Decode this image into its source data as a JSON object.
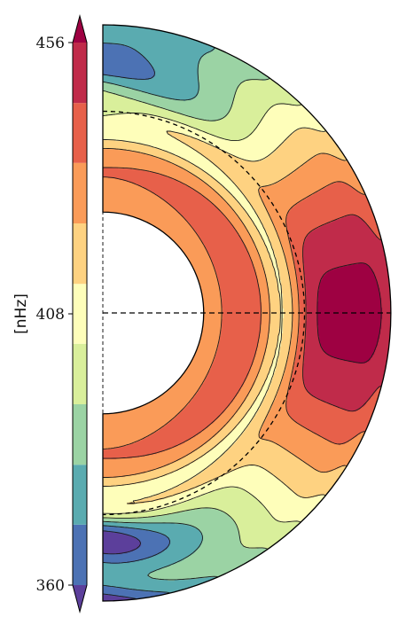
{
  "chart_data": {
    "type": "heatmap",
    "subtype": "meridional-half-disk-contour",
    "colorbar": {
      "label": "[nHz]",
      "vmin": 360,
      "vmax": 456,
      "ticks": [
        {
          "value": 456,
          "label": "456"
        },
        {
          "value": 408,
          "label": "408"
        },
        {
          "value": 360,
          "label": "360"
        }
      ],
      "extend": "both",
      "levels": [
        360,
        370.7,
        381.3,
        392,
        402.7,
        413.3,
        424,
        434.7,
        445.3,
        456
      ],
      "band_colors": [
        "#4c72b4",
        "#5aabb0",
        "#9bd3a4",
        "#d9ef9b",
        "#fefeba",
        "#fed281",
        "#fa9b58",
        "#e7604a",
        "#c02b4a"
      ],
      "under_color": "#5c3f9b",
      "over_color": "#9e0142"
    },
    "field": {
      "inner_radius_fraction": 0.35,
      "tachocline_radius_fraction": 0.7,
      "equator_value_surface": 460,
      "polar_value_surface": 372,
      "radiative_core_value": 428,
      "tachocline_band_value": 410
    },
    "guides": {
      "tachocline_circle": "dashed",
      "equator_line": "dashed",
      "rotation_axis": "dashed"
    }
  }
}
